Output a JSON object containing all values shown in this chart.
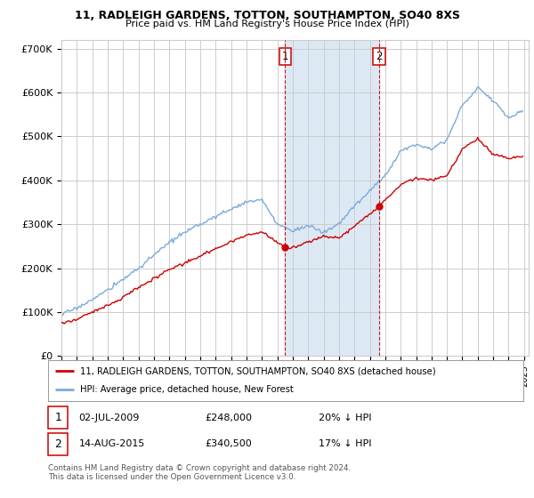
{
  "title1": "11, RADLEIGH GARDENS, TOTTON, SOUTHAMPTON, SO40 8XS",
  "title2": "Price paid vs. HM Land Registry's House Price Index (HPI)",
  "legend_red": "11, RADLEIGH GARDENS, TOTTON, SOUTHAMPTON, SO40 8XS (detached house)",
  "legend_blue": "HPI: Average price, detached house, New Forest",
  "sale1_date": "02-JUL-2009",
  "sale1_price": "£248,000",
  "sale1_hpi": "20% ↓ HPI",
  "sale2_date": "14-AUG-2015",
  "sale2_price": "£340,500",
  "sale2_hpi": "17% ↓ HPI",
  "footer": "Contains HM Land Registry data © Crown copyright and database right 2024.\nThis data is licensed under the Open Government Licence v3.0.",
  "red_color": "#cc0000",
  "blue_color": "#7aabdb",
  "shaded_color": "#dce9f5",
  "vline_color": "#cc0000",
  "grid_color": "#cccccc",
  "background_color": "#ffffff",
  "ylim": [
    0,
    720000
  ],
  "yticks": [
    0,
    100000,
    200000,
    300000,
    400000,
    500000,
    600000,
    700000
  ],
  "ytick_labels": [
    "£0",
    "£100K",
    "£200K",
    "£300K",
    "£400K",
    "£500K",
    "£600K",
    "£700K"
  ],
  "sale1_year": 2009.5,
  "sale2_year": 2015.6,
  "sale1_price_val": 248000,
  "sale2_price_val": 340500
}
